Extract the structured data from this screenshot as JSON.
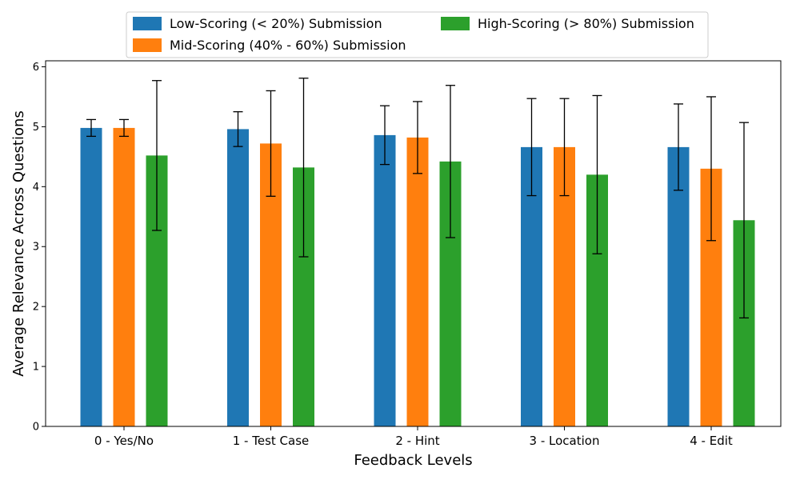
{
  "chart_data": {
    "type": "bar",
    "xlabel": "Feedback Levels",
    "ylabel": "Average Relevance Across Questions",
    "ylim": [
      0,
      6.1
    ],
    "yticks": [
      0,
      1,
      2,
      3,
      4,
      5,
      6
    ],
    "grid": false,
    "legend_position": "top-center",
    "categories": [
      "0 - Yes/No",
      "1 - Test Case",
      "2 - Hint",
      "3 - Location",
      "4 - Edit"
    ],
    "series": [
      {
        "name": "Low-Scoring (< 20%) Submission",
        "color": "#1f77b4",
        "values": [
          4.98,
          4.96,
          4.86,
          4.66,
          4.66
        ],
        "error": [
          0.14,
          0.29,
          0.49,
          0.81,
          0.72
        ]
      },
      {
        "name": "Mid-Scoring (40% - 60%) Submission",
        "color": "#ff7f0e",
        "values": [
          4.98,
          4.72,
          4.82,
          4.66,
          4.3
        ],
        "error": [
          0.14,
          0.88,
          0.6,
          0.81,
          1.2
        ]
      },
      {
        "name": "High-Scoring (> 80%) Submission",
        "color": "#2ca02c",
        "values": [
          4.52,
          4.32,
          4.42,
          4.2,
          3.44
        ],
        "error": [
          1.25,
          1.49,
          1.27,
          1.32,
          1.63
        ]
      }
    ]
  }
}
